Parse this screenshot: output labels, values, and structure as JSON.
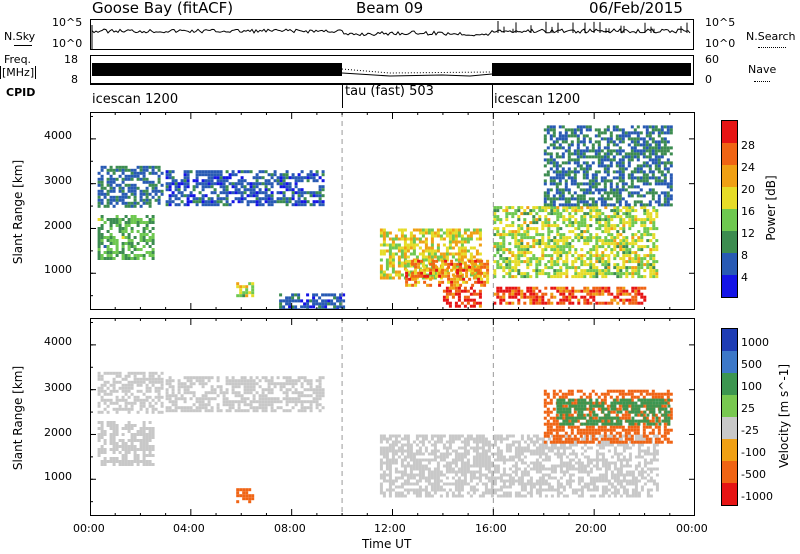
{
  "header": {
    "station": "Goose Bay (fitACF)",
    "beam": "Beam 09",
    "date": "06/Feb/2015"
  },
  "strips": {
    "nsky_label": "N.Sky",
    "nsky_ticks": [
      "10^5",
      "10^0"
    ],
    "nsearch_label": "N.Search",
    "freq_label_1": "Freq.",
    "freq_label_2": "[MHz]",
    "freq_ticks": [
      "18",
      "8"
    ],
    "nave_ticks": [
      "60",
      "0"
    ],
    "nave_label": "Nave",
    "cpid_label": "CPID",
    "cpid_segments": [
      "icescan 1200",
      "tau (fast) 503",
      "icescan 1200"
    ]
  },
  "axes": {
    "ylabel": "Slant Range [km]",
    "xlabel": "Time UT",
    "y_ticks": [
      "1000",
      "2000",
      "3000",
      "4000"
    ],
    "x_ticks": [
      "00:00",
      "04:00",
      "08:00",
      "12:00",
      "16:00",
      "20:00",
      "00:00"
    ]
  },
  "power_scale": {
    "title": "Power [dB]",
    "ticks": [
      "4",
      "8",
      "12",
      "16",
      "20",
      "24",
      "28"
    ],
    "colors": [
      "#1414e6",
      "#285ab4",
      "#3c8c50",
      "#6ec850",
      "#e6dc28",
      "#f0a014",
      "#f06414",
      "#e61414"
    ]
  },
  "velocity_scale": {
    "title": "Velocity [m s^-1]",
    "ticks": [
      "1000",
      "500",
      "100",
      "25",
      "-25",
      "-100",
      "-500",
      "-1000"
    ],
    "colors": [
      "#1e3cb4",
      "#3c78c8",
      "#3c9650",
      "#78c850",
      "#c8c8c8",
      "#f0a014",
      "#f06414",
      "#e61414"
    ]
  },
  "chart_data": [
    {
      "type": "heatmap",
      "title": "Power [dB]",
      "xlabel": "Time UT",
      "ylabel": "Slant Range [km]",
      "xlim": [
        0,
        24
      ],
      "ylim": [
        180,
        4600
      ],
      "colorbar": {
        "label": "Power [dB]",
        "ticks": [
          4,
          8,
          12,
          16,
          20,
          24,
          28
        ]
      },
      "regions": [
        {
          "t": [
            0.3,
            2.8
          ],
          "r": [
            2500,
            3400
          ],
          "value": 8
        },
        {
          "t": [
            0.3,
            2.5
          ],
          "r": [
            1300,
            2300
          ],
          "value": 12
        },
        {
          "t": [
            3.0,
            9.3
          ],
          "r": [
            2500,
            3300
          ],
          "value": 6
        },
        {
          "t": [
            5.8,
            6.5
          ],
          "r": [
            500,
            800
          ],
          "value": 16
        },
        {
          "t": [
            7.5,
            10.0
          ],
          "r": [
            200,
            550
          ],
          "value": 6
        },
        {
          "t": [
            11.5,
            15.5
          ],
          "r": [
            900,
            2000
          ],
          "value": 18
        },
        {
          "t": [
            12.5,
            15.8
          ],
          "r": [
            700,
            1300
          ],
          "value": 24
        },
        {
          "t": [
            14.0,
            15.5
          ],
          "r": [
            280,
            700
          ],
          "value": 30
        },
        {
          "t": [
            16.0,
            22.0
          ],
          "r": [
            300,
            700
          ],
          "value": 28
        },
        {
          "t": [
            16.0,
            22.5
          ],
          "r": [
            900,
            2500
          ],
          "value": 16
        },
        {
          "t": [
            18.0,
            23.0
          ],
          "r": [
            2500,
            4300
          ],
          "value": 8
        }
      ]
    },
    {
      "type": "heatmap",
      "title": "Velocity [m s^-1]",
      "xlabel": "Time UT",
      "ylabel": "Slant Range [km]",
      "xlim": [
        0,
        24
      ],
      "ylim": [
        180,
        4600
      ],
      "colorbar": {
        "label": "Velocity [m s^-1]",
        "ticks": [
          1000,
          500,
          100,
          25,
          -25,
          -100,
          -500,
          -1000
        ]
      },
      "regions": [
        {
          "t": [
            0.3,
            2.8
          ],
          "r": [
            2500,
            3400
          ],
          "value": 0
        },
        {
          "t": [
            0.3,
            2.5
          ],
          "r": [
            1300,
            2300
          ],
          "value": 10
        },
        {
          "t": [
            3.0,
            9.3
          ],
          "r": [
            2500,
            3300
          ],
          "value": 0
        },
        {
          "t": [
            5.8,
            6.5
          ],
          "r": [
            500,
            800
          ],
          "value": -300
        },
        {
          "t": [
            11.5,
            22.5
          ],
          "r": [
            600,
            2000
          ],
          "value": 0
        },
        {
          "t": [
            18.0,
            23.0
          ],
          "r": [
            1800,
            3000
          ],
          "value": -150
        },
        {
          "t": [
            18.5,
            23.0
          ],
          "r": [
            2200,
            2800
          ],
          "value": 150
        }
      ]
    }
  ]
}
